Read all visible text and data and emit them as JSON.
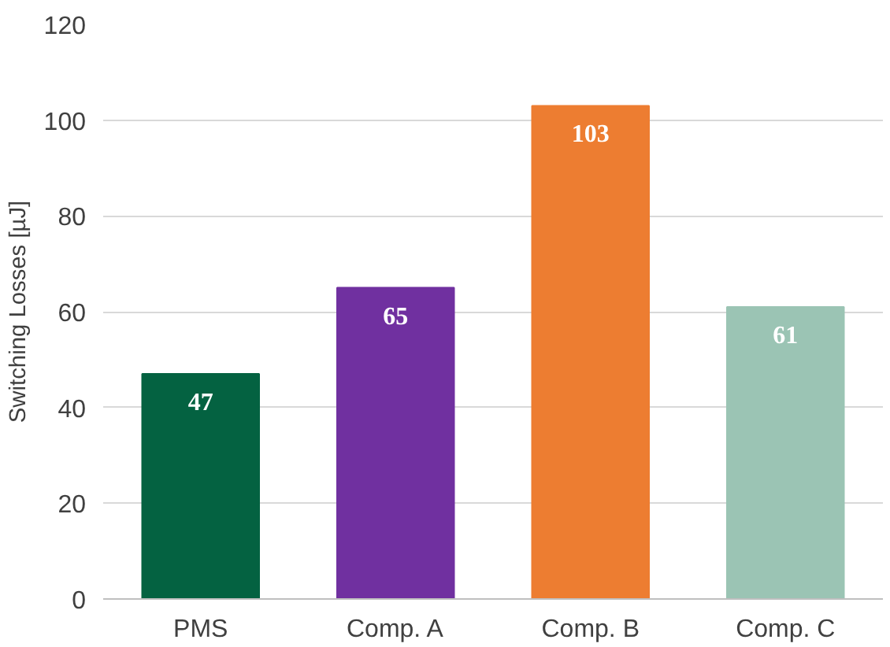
{
  "chart_data": {
    "type": "bar",
    "ylabel": "Switching Losses [µJ]",
    "categories": [
      "PMS",
      "Comp. A",
      "Comp. B",
      "Comp. C"
    ],
    "values": [
      47,
      65,
      103,
      61
    ],
    "colors": [
      "#046241",
      "#7030a0",
      "#ed7d31",
      "#9bc4b4"
    ],
    "ylim": [
      0,
      120
    ],
    "yticks": [
      0,
      20,
      40,
      60,
      80,
      100,
      120
    ],
    "grid": "y",
    "data_labels": true
  }
}
